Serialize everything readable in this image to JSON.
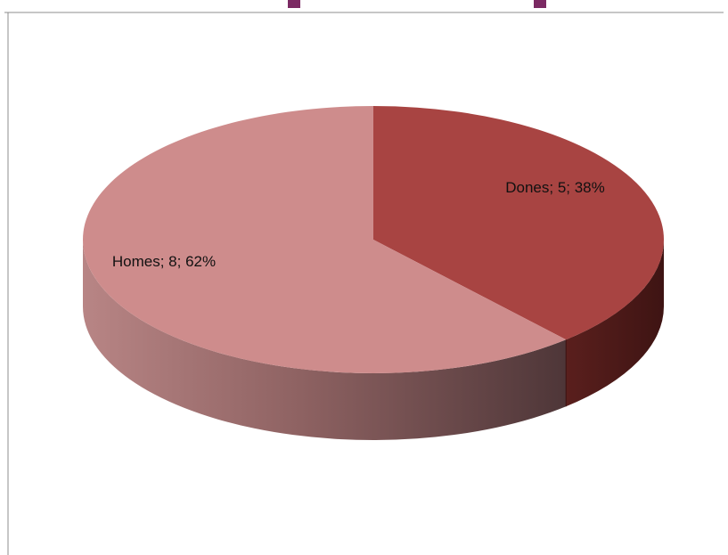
{
  "colors": {
    "homes_top": "#CE8C8C",
    "dones_top": "#A84442",
    "frame_line": "#8C8C8C",
    "title_fragment": "#7B2A63"
  },
  "chart_data": {
    "type": "pie",
    "three_d": true,
    "title": "",
    "legend": "none",
    "slices": [
      {
        "name": "Dones",
        "value": 5,
        "percent": 38,
        "label": "Dones; 5; 38%"
      },
      {
        "name": "Homes",
        "value": 8,
        "percent": 62,
        "label": "Homes; 8; 62%"
      }
    ]
  }
}
